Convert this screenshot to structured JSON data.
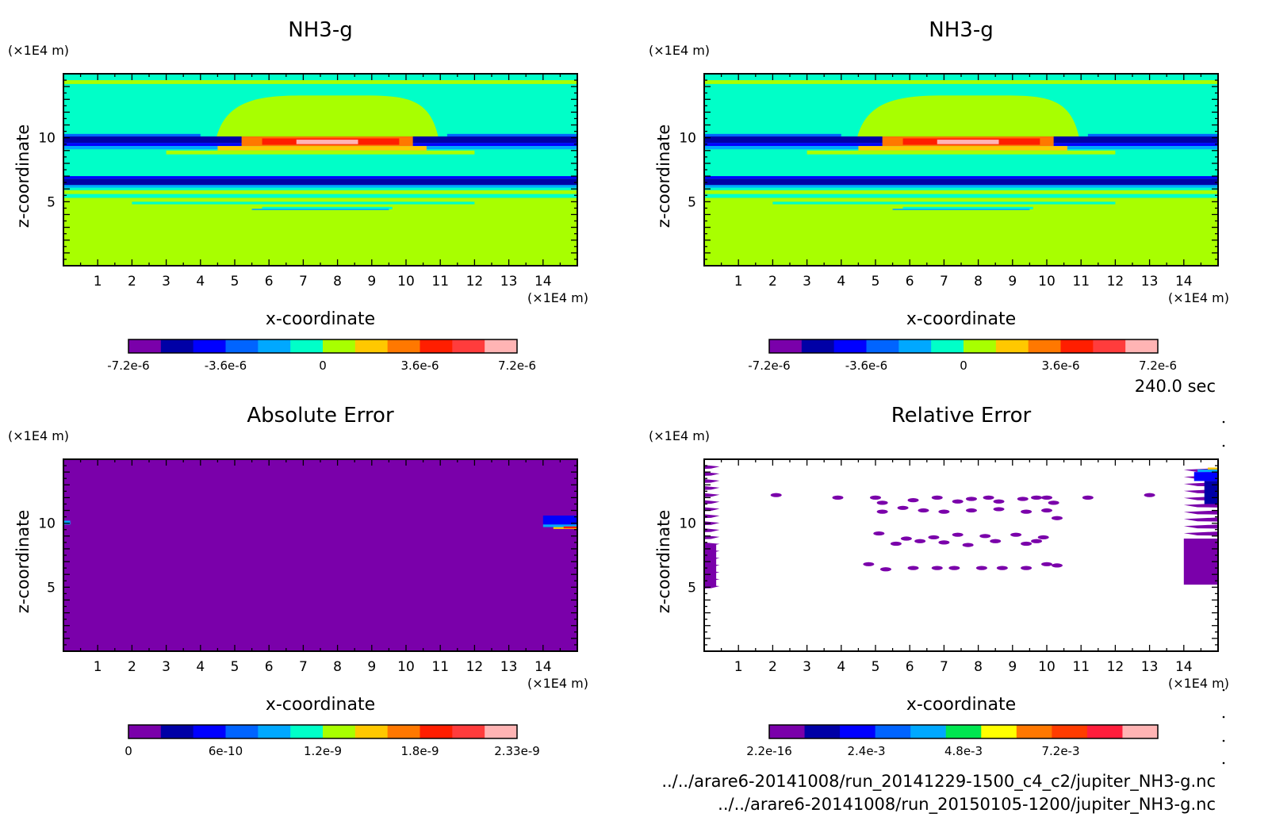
{
  "timestamp": "240.0 sec",
  "file_paths": [
    "../../arare6-20141008/run_20141229-1500_c4_c2/jupiter_NH3-g.nc",
    "../../arare6-20141008/run_20150105-1200/jupiter_NH3-g.nc"
  ],
  "panels": [
    {
      "title": "NH3-g",
      "xlabel": "x-coordinate",
      "ylabel": "z-coordinate",
      "x_unit": "(×1E4 m)",
      "y_unit": "(×1E4 m)",
      "x_ticks": [
        "1",
        "2",
        "3",
        "4",
        "5",
        "6",
        "7",
        "8",
        "9",
        "10",
        "11",
        "12",
        "13",
        "14"
      ],
      "y_ticks": [
        "5",
        "10"
      ],
      "colorbar": {
        "labels": [
          "-7.2e-6",
          "-3.6e-6",
          "0",
          "3.6e-6",
          "7.2e-6"
        ],
        "colors": [
          "#7a00aa",
          "#0000a6",
          "#0000ff",
          "#0064ff",
          "#00a8ff",
          "#00ffc8",
          "#a8ff00",
          "#ffc800",
          "#ff7800",
          "#ff1e00",
          "#ff3c3c",
          "#ffb4b4"
        ]
      }
    },
    {
      "title": "NH3-g",
      "xlabel": "x-coordinate",
      "ylabel": "z-coordinate",
      "x_unit": "(×1E4 m)",
      "y_unit": "(×1E4 m)",
      "x_ticks": [
        "1",
        "2",
        "3",
        "4",
        "5",
        "6",
        "7",
        "8",
        "9",
        "10",
        "11",
        "12",
        "13",
        "14"
      ],
      "y_ticks": [
        "5",
        "10"
      ],
      "colorbar": {
        "labels": [
          "-7.2e-6",
          "-3.6e-6",
          "0",
          "3.6e-6",
          "7.2e-6"
        ],
        "colors": [
          "#7a00aa",
          "#0000a6",
          "#0000ff",
          "#0064ff",
          "#00a8ff",
          "#00ffc8",
          "#a8ff00",
          "#ffc800",
          "#ff7800",
          "#ff1e00",
          "#ff3c3c",
          "#ffb4b4"
        ]
      }
    },
    {
      "title": "Absolute Error",
      "xlabel": "x-coordinate",
      "ylabel": "z-coordinate",
      "x_unit": "(×1E4 m)",
      "y_unit": "(×1E4 m)",
      "x_ticks": [
        "1",
        "2",
        "3",
        "4",
        "5",
        "6",
        "7",
        "8",
        "9",
        "10",
        "11",
        "12",
        "13",
        "14"
      ],
      "y_ticks": [
        "5",
        "10"
      ],
      "colorbar": {
        "labels": [
          "0",
          "6e-10",
          "1.2e-9",
          "1.8e-9",
          "2.33e-9"
        ],
        "colors": [
          "#7a00aa",
          "#0000a6",
          "#0000ff",
          "#0064ff",
          "#00a8ff",
          "#00ffc8",
          "#a8ff00",
          "#ffc800",
          "#ff7800",
          "#ff1e00",
          "#ff3c3c",
          "#ffb4b4"
        ]
      }
    },
    {
      "title": "Relative Error",
      "xlabel": "x-coordinate",
      "ylabel": "z-coordinate",
      "x_unit": "(×1E4 m)",
      "y_unit": "(×1E4 m)",
      "x_ticks": [
        "1",
        "2",
        "3",
        "4",
        "5",
        "6",
        "7",
        "8",
        "9",
        "10",
        "11",
        "12",
        "13",
        "14"
      ],
      "y_ticks": [
        "5",
        "10"
      ],
      "colorbar": {
        "labels": [
          "2.2e-16",
          "2.4e-3",
          "4.8e-3",
          "7.2e-3"
        ],
        "colors": [
          "#7a00aa",
          "#0000a6",
          "#0000ff",
          "#0064ff",
          "#00a8ff",
          "#00e650",
          "#ffff00",
          "#ff7800",
          "#ff3c00",
          "#ff1e3c",
          "#ffb4b4"
        ]
      }
    }
  ],
  "chart_data": [
    {
      "type": "heatmap",
      "title": "NH3-g",
      "xlabel": "x-coordinate",
      "ylabel": "z-coordinate",
      "x_unit": "(×1E4 m)",
      "y_unit": "(×1E4 m)",
      "xlim": [
        0,
        15
      ],
      "ylim": [
        0,
        15
      ],
      "colorbar_range": [
        -7.2e-06,
        7.2e-06
      ],
      "colorbar_ticks": [
        -7.2e-06,
        -3.6e-06,
        0,
        3.6e-06,
        7.2e-06
      ]
    },
    {
      "type": "heatmap",
      "title": "NH3-g",
      "xlabel": "x-coordinate",
      "ylabel": "z-coordinate",
      "x_unit": "(×1E4 m)",
      "y_unit": "(×1E4 m)",
      "xlim": [
        0,
        15
      ],
      "ylim": [
        0,
        15
      ],
      "colorbar_range": [
        -7.2e-06,
        7.2e-06
      ],
      "colorbar_ticks": [
        -7.2e-06,
        -3.6e-06,
        0,
        3.6e-06,
        7.2e-06
      ]
    },
    {
      "type": "heatmap",
      "title": "Absolute Error",
      "xlabel": "x-coordinate",
      "ylabel": "z-coordinate",
      "x_unit": "(×1E4 m)",
      "y_unit": "(×1E4 m)",
      "xlim": [
        0,
        15
      ],
      "ylim": [
        0,
        15
      ],
      "colorbar_range": [
        0,
        2.33e-09
      ],
      "colorbar_ticks": [
        0,
        6e-10,
        1.2e-09,
        1.8e-09,
        2.33e-09
      ]
    },
    {
      "type": "heatmap",
      "title": "Relative Error",
      "xlabel": "x-coordinate",
      "ylabel": "z-coordinate",
      "x_unit": "(×1E4 m)",
      "y_unit": "(×1E4 m)",
      "xlim": [
        0,
        15
      ],
      "ylim": [
        0,
        15
      ],
      "colorbar_range": [
        2.2e-16,
        0.0072
      ],
      "colorbar_ticks": [
        2.2e-16,
        0.0024,
        0.0048,
        0.0072
      ]
    }
  ]
}
